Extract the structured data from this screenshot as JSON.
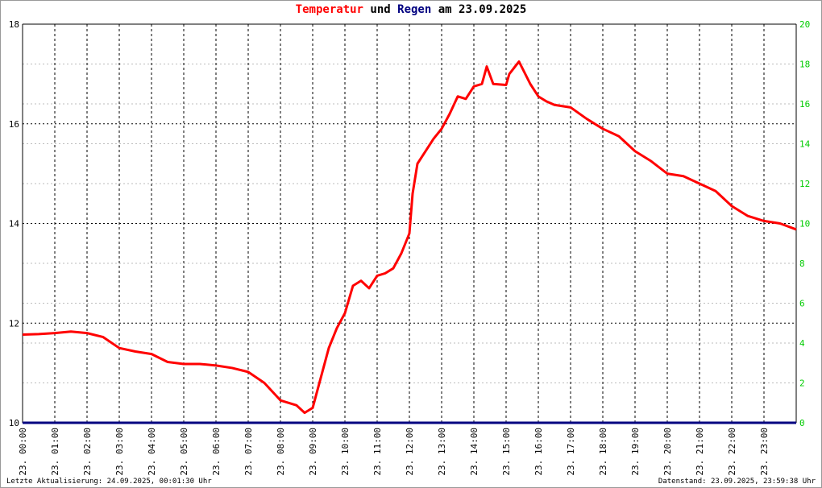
{
  "chart_data": {
    "type": "line",
    "title": [
      {
        "text": "Temperatur",
        "color": "#ff0000"
      },
      {
        "text": "und",
        "color": "#000000"
      },
      {
        "text": "Regen",
        "color": "#000080"
      },
      {
        "text": "am 23.09.2025",
        "color": "#000000"
      }
    ],
    "footer_left": "Letzte Aktualisierung: 24.09.2025, 00:01:30 Uhr",
    "footer_right": "Datenstand: 23.09.2025, 23:59:38 Uhr",
    "xlim": [
      0,
      24
    ],
    "xticks": [
      {
        "value": 0,
        "label": "23. 00:00"
      },
      {
        "value": 1,
        "label": "23. 01:00"
      },
      {
        "value": 2,
        "label": "23. 02:00"
      },
      {
        "value": 3,
        "label": "23. 03:00"
      },
      {
        "value": 4,
        "label": "23. 04:00"
      },
      {
        "value": 5,
        "label": "23. 05:00"
      },
      {
        "value": 6,
        "label": "23. 06:00"
      },
      {
        "value": 7,
        "label": "23. 07:00"
      },
      {
        "value": 8,
        "label": "23. 08:00"
      },
      {
        "value": 9,
        "label": "23. 09:00"
      },
      {
        "value": 10,
        "label": "23. 10:00"
      },
      {
        "value": 11,
        "label": "23. 11:00"
      },
      {
        "value": 12,
        "label": "23. 12:00"
      },
      {
        "value": 13,
        "label": "23. 13:00"
      },
      {
        "value": 14,
        "label": "23. 14:00"
      },
      {
        "value": 15,
        "label": "23. 15:00"
      },
      {
        "value": 16,
        "label": "23. 16:00"
      },
      {
        "value": 17,
        "label": "23. 17:00"
      },
      {
        "value": 18,
        "label": "23. 18:00"
      },
      {
        "value": 19,
        "label": "23. 19:00"
      },
      {
        "value": 20,
        "label": "23. 20:00"
      },
      {
        "value": 21,
        "label": "23. 21:00"
      },
      {
        "value": 22,
        "label": "23. 22:00"
      },
      {
        "value": 23,
        "label": "23. 23:00"
      }
    ],
    "ylim": [
      10,
      18
    ],
    "yticks": [
      10,
      12,
      14,
      16,
      18
    ],
    "y2lim": [
      0,
      20
    ],
    "y2ticks": [
      0,
      2,
      4,
      6,
      8,
      10,
      12,
      14,
      16,
      18,
      20
    ],
    "y2tick_color": "#00cc00",
    "grid": true,
    "series": [
      {
        "name": "Temperatur",
        "color": "#ff0000",
        "x": [
          0,
          0.5,
          1,
          1.5,
          2,
          2.5,
          3,
          3.5,
          4,
          4.5,
          5,
          5.5,
          6,
          6.5,
          7,
          7.5,
          8,
          8.5,
          8.75,
          9,
          9.25,
          9.5,
          9.75,
          10,
          10.25,
          10.5,
          10.75,
          11,
          11.25,
          11.5,
          11.75,
          12,
          12.1,
          12.25,
          12.5,
          12.75,
          13,
          13.25,
          13.5,
          13.75,
          14,
          14.25,
          14.4,
          14.6,
          15,
          15.1,
          15.4,
          15.75,
          16,
          16.25,
          16.5,
          17,
          17.5,
          18,
          18.5,
          19,
          19.5,
          20,
          20.5,
          21,
          21.5,
          22,
          22.5,
          23,
          23.5,
          24
        ],
        "values": [
          11.77,
          11.78,
          11.8,
          11.83,
          11.8,
          11.72,
          11.5,
          11.43,
          11.38,
          11.22,
          11.18,
          11.18,
          11.15,
          11.1,
          11.02,
          10.8,
          10.45,
          10.35,
          10.2,
          10.3,
          10.9,
          11.5,
          11.9,
          12.2,
          12.75,
          12.85,
          12.7,
          12.95,
          13.0,
          13.1,
          13.4,
          13.8,
          14.6,
          15.2,
          15.45,
          15.7,
          15.9,
          16.2,
          16.55,
          16.5,
          16.75,
          16.8,
          17.15,
          16.8,
          16.78,
          17.0,
          17.25,
          16.8,
          16.55,
          16.45,
          16.38,
          16.33,
          16.1,
          15.9,
          15.75,
          15.45,
          15.25,
          15.0,
          14.95,
          14.8,
          14.65,
          14.35,
          14.15,
          14.05,
          14.0,
          13.88
        ]
      },
      {
        "name": "Regen",
        "color": "#000080",
        "axis": "y2",
        "x": [
          0,
          24
        ],
        "values": [
          0,
          0
        ]
      }
    ]
  }
}
